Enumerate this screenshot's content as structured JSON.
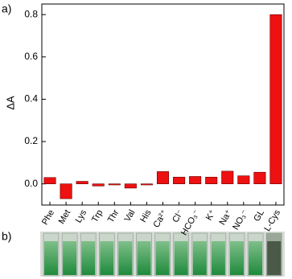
{
  "chart_data": {
    "type": "bar",
    "panel_labels": [
      "a)",
      "b)"
    ],
    "ylabel": "ΔA",
    "categories": [
      "Phe",
      "Met",
      "Lys",
      "Trp",
      "Thr",
      "Val",
      "His",
      "Ca²⁺",
      "Cl⁻",
      "HCO₃⁻",
      "K⁺",
      "Na⁺",
      "NO₃⁻",
      "GL",
      "L-Cys"
    ],
    "values": [
      0.03,
      -0.07,
      0.012,
      -0.01,
      -0.005,
      -0.02,
      -0.005,
      0.058,
      0.032,
      0.035,
      0.032,
      0.06,
      0.038,
      0.055,
      0.8
    ],
    "color": "#ee1111",
    "ylim": [
      -0.1,
      0.85
    ],
    "yticks": [
      {
        "value": 0,
        "label": "0.0"
      },
      0.2,
      0.4,
      0.6,
      0.8
    ]
  }
}
